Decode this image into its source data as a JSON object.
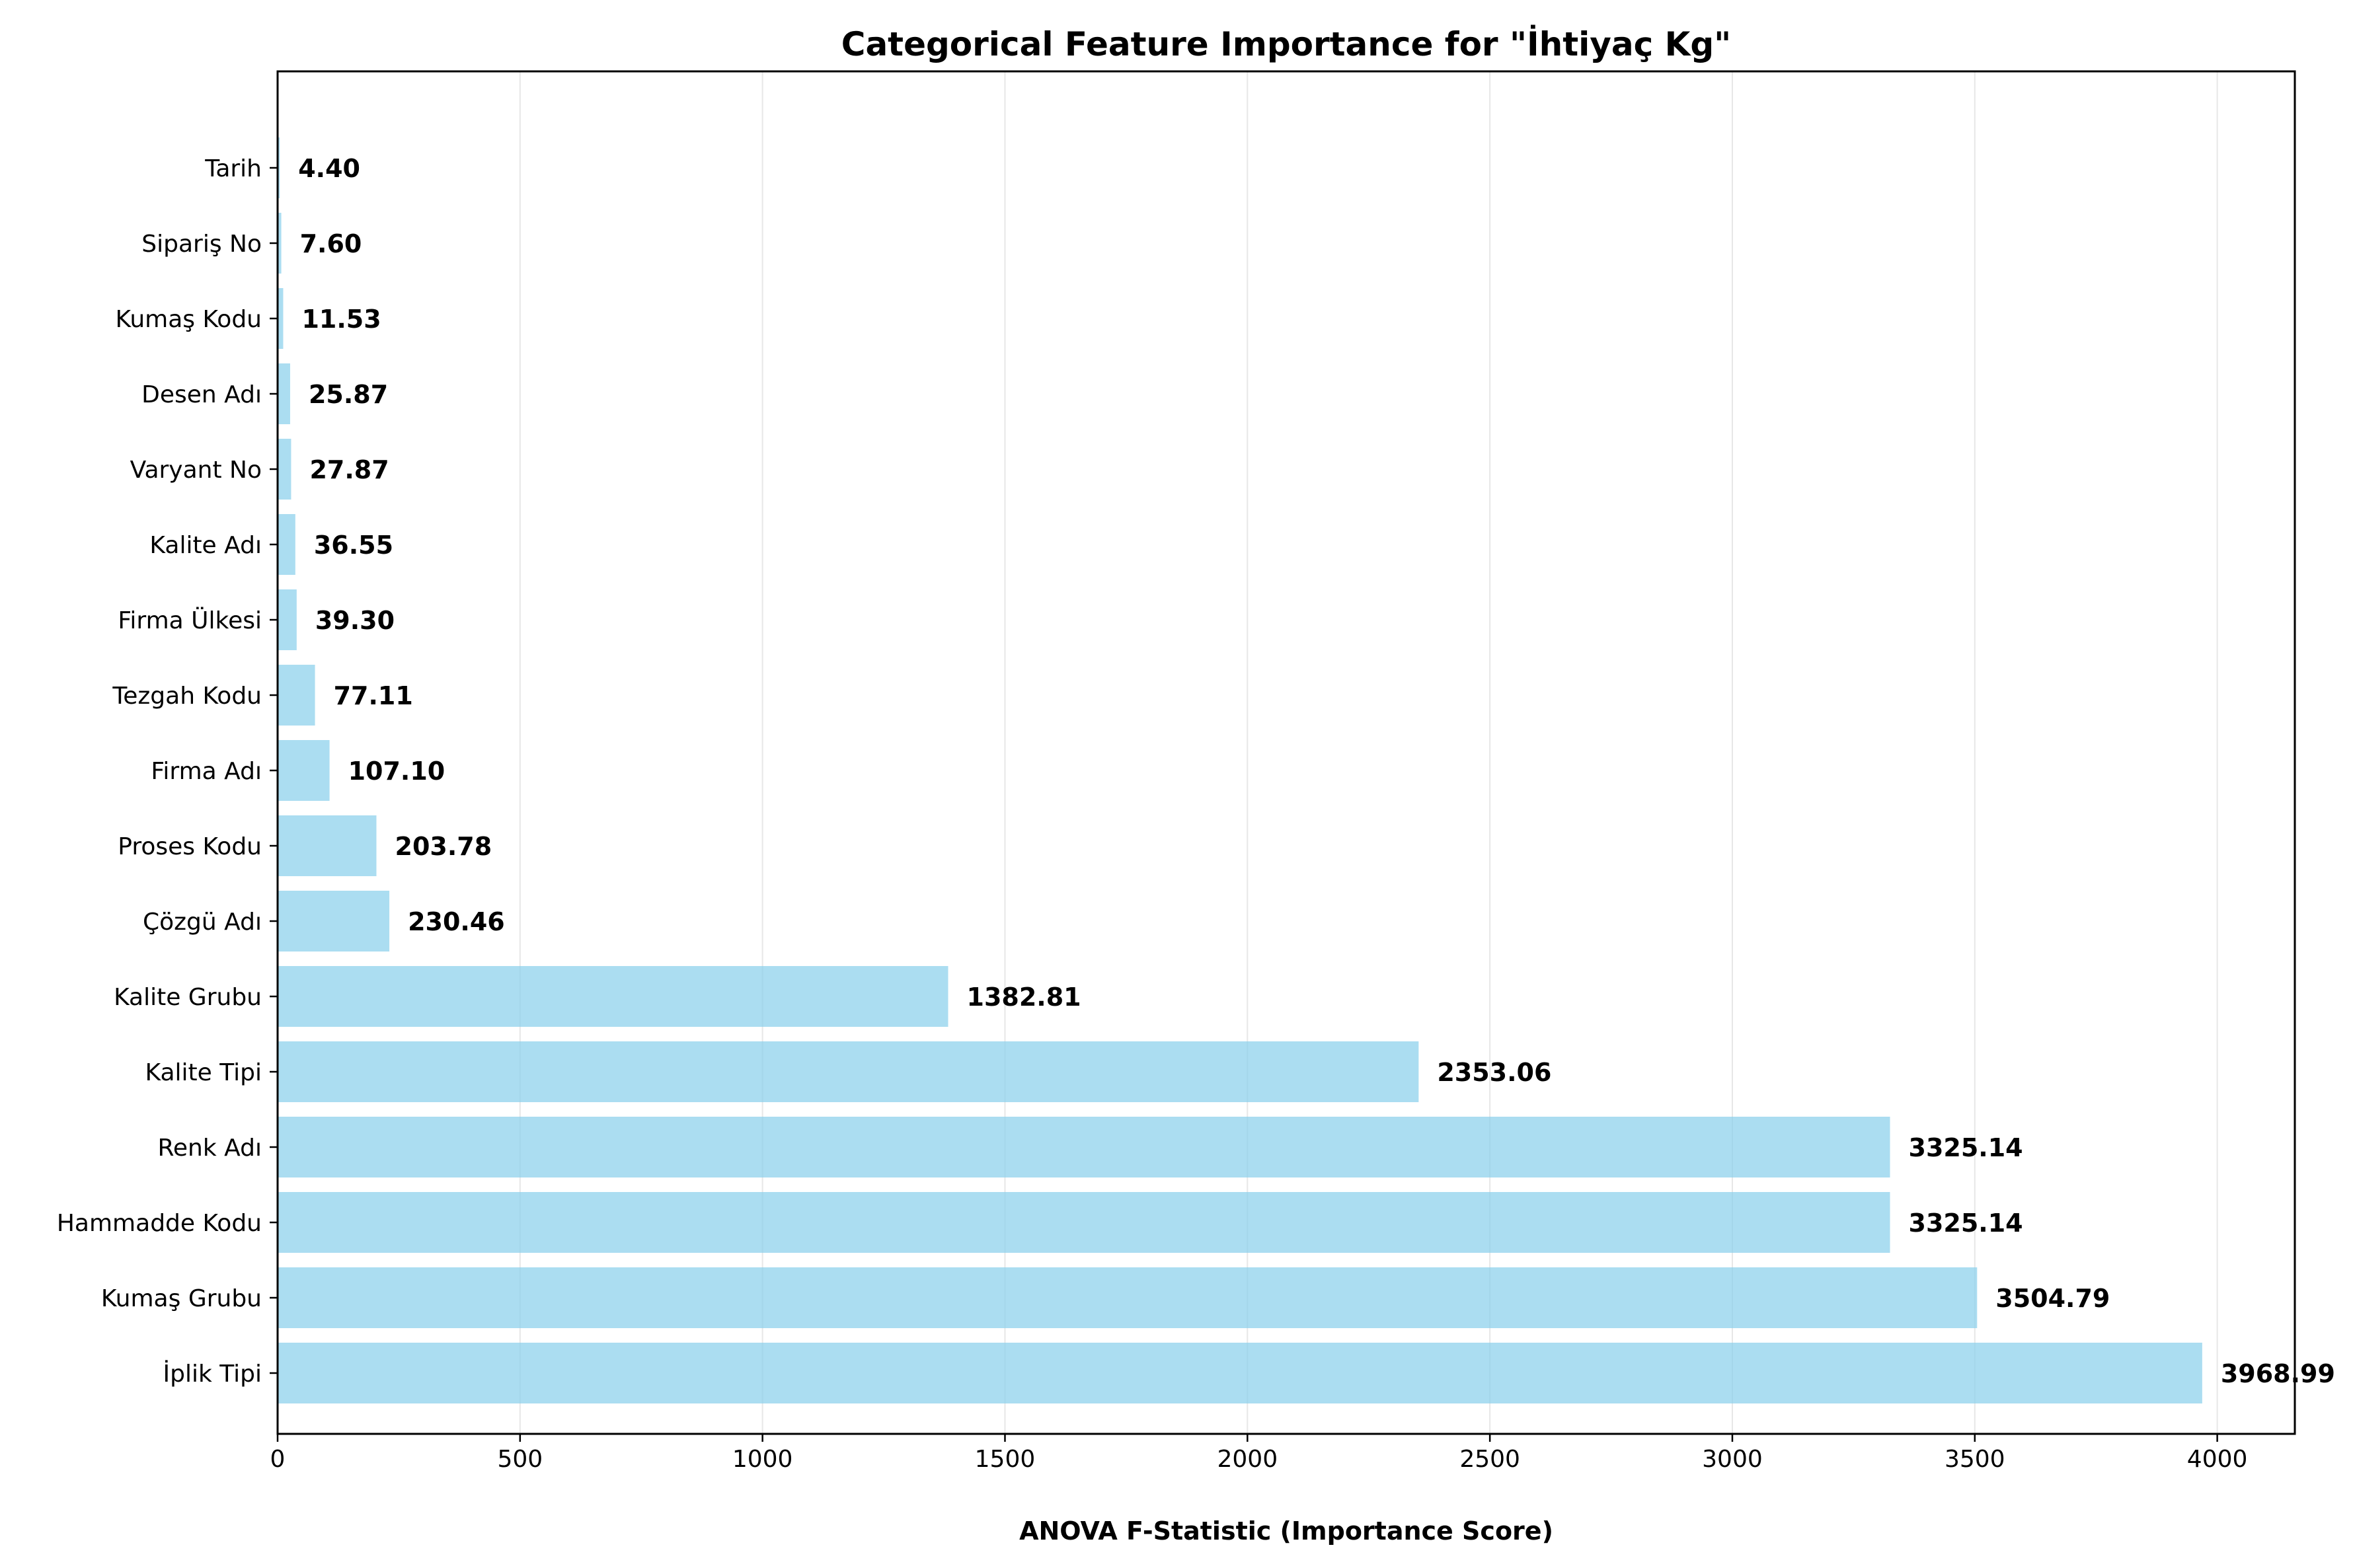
{
  "chart_data": {
    "type": "bar",
    "orientation": "horizontal",
    "title": "Categorical Feature Importance for \"İhtiyaç Kg\"",
    "xlabel": "ANOVA F-Statistic (Importance Score)",
    "ylabel": "",
    "xlim": [
      0,
      4160
    ],
    "x_ticks": [
      0,
      500,
      1000,
      1500,
      2000,
      2500,
      3000,
      3500,
      4000
    ],
    "x_tick_labels": [
      "0",
      "500",
      "1000",
      "1500",
      "2000",
      "2500",
      "3000",
      "3500",
      "4000"
    ],
    "grid": "x",
    "bar_color": "#87CEEB",
    "categories": [
      "İplik Tipi",
      "Kumaş Grubu",
      "Hammadde Kodu",
      "Renk Adı",
      "Kalite Tipi",
      "Kalite Grubu",
      "Çözgü Adı",
      "Proses Kodu",
      "Firma Adı",
      "Tezgah Kodu",
      "Firma Ülkesi",
      "Kalite Adı",
      "Varyant No",
      "Desen Adı",
      "Kumaş Kodu",
      "Sipariş No",
      "Tarih"
    ],
    "values": [
      3968.99,
      3504.79,
      3325.14,
      3325.14,
      2353.06,
      1382.81,
      230.46,
      203.78,
      107.1,
      77.11,
      39.3,
      36.55,
      27.87,
      25.87,
      11.53,
      7.6,
      4.4
    ],
    "value_labels": [
      "3968.99",
      "3504.79",
      "3325.14",
      "3325.14",
      "2353.06",
      "1382.81",
      "230.46",
      "203.78",
      "107.10",
      "77.11",
      "39.30",
      "36.55",
      "27.87",
      "25.87",
      "11.53",
      "7.60",
      "4.40"
    ]
  }
}
